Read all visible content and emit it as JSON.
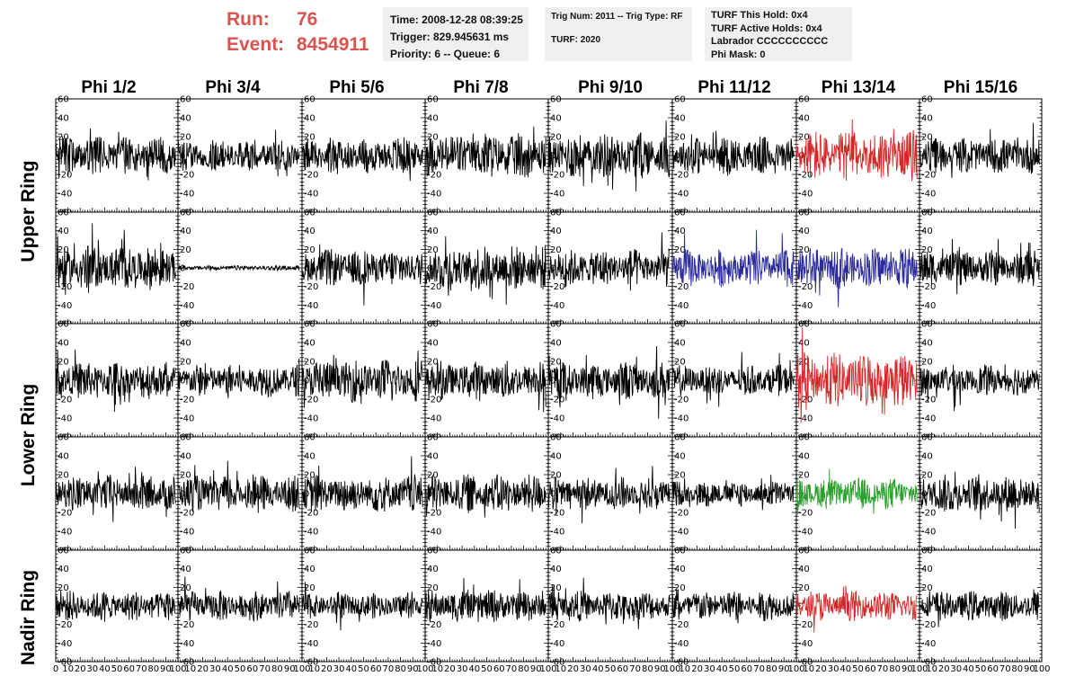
{
  "header": {
    "run_label": "Run:",
    "run_value": "76",
    "event_label": "Event:",
    "event_value": "8454911",
    "colors": {
      "run_text": "#d9534f",
      "panel_bg": "#f0f0f0"
    }
  },
  "info_boxes": [
    {
      "lines": [
        "Time: 2008-12-28 08:39:25",
        "Trigger: 829.945631 ms",
        "Priority: 6 -- Queue: 6"
      ]
    },
    {
      "lines": [
        "Trig Num: 2011 -- Trig Type: RF",
        "TURF: 2020"
      ]
    },
    {
      "lines": [
        "TURF This Hold: 0x4",
        "TURF Active Holds: 0x4",
        "Labrador CCCCCCCCCC",
        "Phi Mask: 0"
      ]
    }
  ],
  "columns": [
    "Phi 1/2",
    "Phi 3/4",
    "Phi 5/6",
    "Phi 7/8",
    "Phi 9/10",
    "Phi 11/12",
    "Phi 13/14",
    "Phi 15/16"
  ],
  "rows": [
    "Upper Ring",
    "Lower Ring",
    "Nadir Ring"
  ],
  "chart_data": {
    "type": "line",
    "description_units": "waveform amplitude vs sample index",
    "xlim": [
      0,
      100
    ],
    "ylim": [
      -60,
      60
    ],
    "x_ticks": [
      0,
      10,
      20,
      30,
      40,
      50,
      60,
      70,
      80,
      90,
      100
    ],
    "x_tick_labels": [
      "0",
      "10",
      "20",
      "30",
      "40",
      "50",
      "60",
      "70",
      "80",
      "90",
      "100"
    ],
    "y_ticks": [
      -60,
      -40,
      -20,
      0,
      20,
      40,
      60
    ],
    "y_tick_labels": [
      "-60",
      "-40",
      "-20",
      "0",
      "20",
      "40",
      "60"
    ],
    "grid_rows": 5,
    "grid_cols": 8,
    "ring_layout": [
      {
        "ring": "Upper Ring",
        "panel_rows": [
          0,
          1
        ]
      },
      {
        "ring": "Lower Ring",
        "panel_rows": [
          2,
          3
        ]
      },
      {
        "ring": "Nadir Ring",
        "panel_rows": [
          4
        ]
      }
    ],
    "panel_amplitudes": [
      [
        15,
        12,
        15,
        18,
        18,
        15,
        20,
        14
      ],
      [
        18,
        2,
        15,
        18,
        15,
        15,
        16,
        14
      ],
      [
        15,
        13,
        17,
        15,
        15,
        12,
        22,
        12
      ],
      [
        14,
        14,
        15,
        15,
        13,
        10,
        12,
        15
      ],
      [
        12,
        12,
        10,
        13,
        12,
        12,
        12,
        12
      ]
    ],
    "panel_colors": [
      [
        "#000000",
        "#000000",
        "#000000",
        "#000000",
        "#000000",
        "#000000",
        "#d62728",
        "#000000"
      ],
      [
        "#000000",
        "#000000",
        "#000000",
        "#000000",
        "#000000",
        "#2a2a9a",
        "#2a2a9a",
        "#000000"
      ],
      [
        "#000000",
        "#000000",
        "#000000",
        "#000000",
        "#000000",
        "#000000",
        "#d62728",
        "#000000"
      ],
      [
        "#000000",
        "#000000",
        "#000000",
        "#000000",
        "#000000",
        "#000000",
        "#2ca02c",
        "#000000"
      ],
      [
        "#000000",
        "#000000",
        "#000000",
        "#000000",
        "#000000",
        "#000000",
        "#d62728",
        "#000000"
      ]
    ],
    "samples_per_trace": 260
  }
}
